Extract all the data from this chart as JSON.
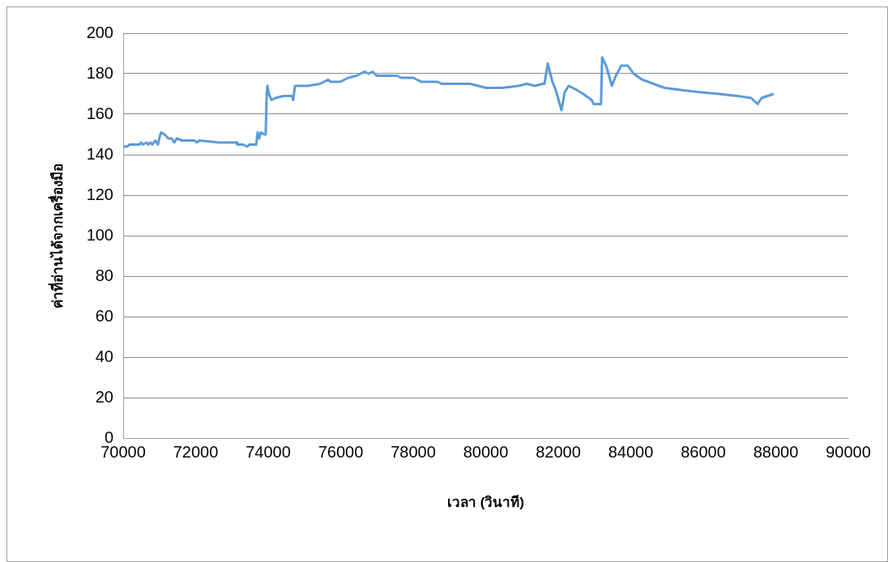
{
  "chart_data": {
    "type": "line",
    "xlabel": "เวลา (วินาที)",
    "ylabel": "ค่าที่อ่านได้จากเครื่องมือ",
    "xlim": [
      70000,
      90000
    ],
    "xticks": [
      70000,
      72000,
      74000,
      76000,
      78000,
      80000,
      82000,
      84000,
      86000,
      88000,
      90000
    ],
    "ylim": [
      0,
      200
    ],
    "yticks": [
      0,
      20,
      40,
      60,
      80,
      100,
      120,
      140,
      160,
      180,
      200
    ],
    "grid": "y",
    "legend": false,
    "marker": "none",
    "line_style": "solid",
    "series": [
      {
        "color": "#5b9bd5",
        "x": [
          70000,
          70110,
          70180,
          70450,
          70490,
          70540,
          70650,
          70690,
          70760,
          70800,
          70890,
          70960,
          71010,
          71050,
          71140,
          71250,
          71340,
          71410,
          71480,
          71630,
          71970,
          72030,
          72100,
          72640,
          73130,
          73150,
          73310,
          73420,
          73490,
          73670,
          73710,
          73750,
          73800,
          73890,
          73930,
          73960,
          73980,
          74020,
          74090,
          74200,
          74430,
          74650,
          74690,
          74740,
          75100,
          75430,
          75540,
          75650,
          75720,
          75990,
          76100,
          76210,
          76440,
          76660,
          76770,
          76880,
          76990,
          77550,
          77670,
          78000,
          78110,
          78220,
          78670,
          78780,
          79560,
          79790,
          80010,
          80460,
          80910,
          81130,
          81350,
          81580,
          81620,
          81710,
          81840,
          81930,
          82090,
          82180,
          82290,
          82510,
          82690,
          82920,
          82980,
          83180,
          83210,
          83320,
          83480,
          83590,
          83740,
          83920,
          84080,
          84320,
          84480,
          84930,
          85370,
          85820,
          86430,
          86940,
          87320,
          87500,
          87610,
          87770,
          87940
        ],
        "values": [
          144,
          144,
          145,
          145,
          146,
          145,
          146,
          145,
          146,
          145,
          147,
          145,
          149,
          151,
          150,
          148,
          148,
          146,
          148,
          147,
          147,
          146,
          147,
          146,
          146,
          145,
          145,
          144,
          145,
          145,
          151,
          148,
          151,
          150,
          150,
          170,
          174,
          170,
          167,
          168,
          169,
          169,
          167,
          174,
          174,
          175,
          176,
          177,
          176,
          176,
          177,
          178,
          179,
          181,
          180,
          181,
          179,
          179,
          178,
          178,
          177,
          176,
          176,
          175,
          175,
          174,
          173,
          173,
          174,
          175,
          174,
          175,
          175,
          185,
          176,
          172,
          162,
          171,
          174,
          172,
          170,
          167,
          165,
          165,
          188,
          184,
          174,
          179,
          184,
          184,
          180,
          177,
          176,
          173,
          172,
          171,
          170,
          169,
          168,
          165,
          168,
          169,
          170
        ]
      }
    ]
  }
}
